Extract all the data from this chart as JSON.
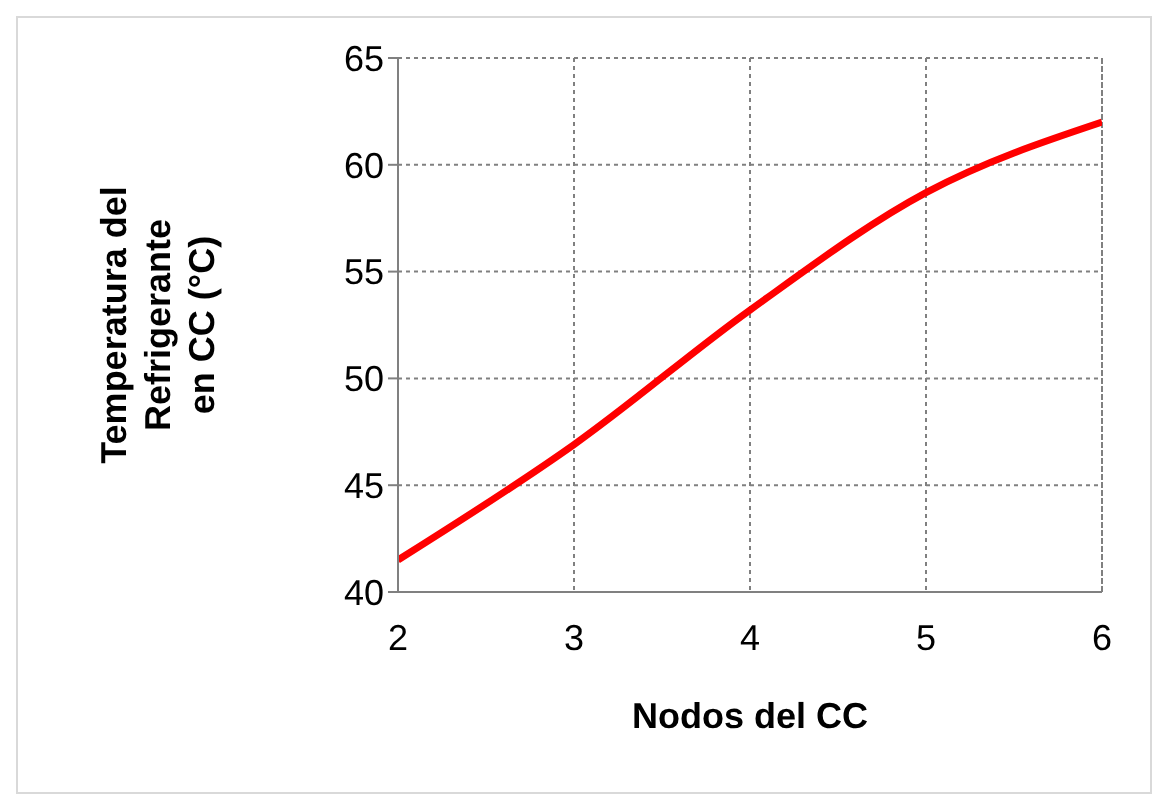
{
  "chart_data": {
    "type": "line",
    "xlabel": "Nodos del CC",
    "ylabel": "Temperatura del\nRefrigerante\nen CC  (°C)",
    "x": [
      2,
      3,
      4,
      5,
      6
    ],
    "series": [
      {
        "color": "#ff0000",
        "values": [
          41.5,
          46.9,
          53.2,
          58.7,
          62.0
        ]
      }
    ],
    "xlim": [
      2,
      6
    ],
    "xticks": [
      2,
      3,
      4,
      5,
      6
    ],
    "ylim": [
      40,
      65
    ],
    "yticks": [
      40,
      45,
      50,
      55,
      60,
      65
    ],
    "grid": true,
    "legend": false,
    "marker": "none",
    "line_style": "solid"
  }
}
